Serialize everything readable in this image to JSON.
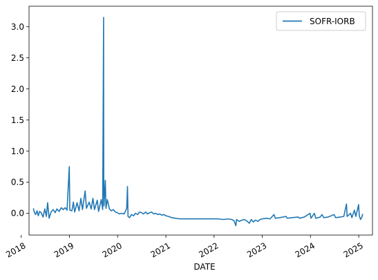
{
  "chart_data": {
    "type": "line",
    "xlabel": "DATE",
    "ylabel": "",
    "ylim": [
      -0.35,
      3.33
    ],
    "xlim": [
      "2018-03-01",
      "2025-04-15"
    ],
    "grid": false,
    "legend_position": "top-right",
    "y_ticks": [
      {
        "value": 0.0,
        "label": "0.0"
      },
      {
        "value": 0.5,
        "label": "0.5"
      },
      {
        "value": 1.0,
        "label": "1.0"
      },
      {
        "value": 1.5,
        "label": "1.5"
      },
      {
        "value": 2.0,
        "label": "2.0"
      },
      {
        "value": 2.5,
        "label": "2.5"
      },
      {
        "value": 3.0,
        "label": "3.0"
      }
    ],
    "x_ticks": [
      {
        "value": "2018-01-01",
        "label": "2018"
      },
      {
        "value": "2019-01-01",
        "label": "2019"
      },
      {
        "value": "2020-01-01",
        "label": "2020"
      },
      {
        "value": "2021-01-01",
        "label": "2021"
      },
      {
        "value": "2022-01-01",
        "label": "2022"
      },
      {
        "value": "2023-01-01",
        "label": "2023"
      },
      {
        "value": "2024-01-01",
        "label": "2024"
      },
      {
        "value": "2025-01-01",
        "label": "2025"
      }
    ],
    "series": [
      {
        "name": "SOFR-IORB",
        "color": "#1f77b4",
        "points": [
          [
            "2018-04-03",
            0.08
          ],
          [
            "2018-04-10",
            0.02
          ],
          [
            "2018-04-20",
            -0.02
          ],
          [
            "2018-05-01",
            0.04
          ],
          [
            "2018-05-10",
            -0.04
          ],
          [
            "2018-05-20",
            0.03
          ],
          [
            "2018-06-01",
            0.01
          ],
          [
            "2018-06-15",
            -0.06
          ],
          [
            "2018-06-29",
            0.07
          ],
          [
            "2018-07-10",
            -0.05
          ],
          [
            "2018-07-20",
            0.17
          ],
          [
            "2018-07-31",
            -0.08
          ],
          [
            "2018-08-15",
            0.02
          ],
          [
            "2018-08-31",
            0.06
          ],
          [
            "2018-09-15",
            0.01
          ],
          [
            "2018-09-28",
            0.07
          ],
          [
            "2018-10-15",
            0.03
          ],
          [
            "2018-10-31",
            0.09
          ],
          [
            "2018-11-15",
            0.06
          ],
          [
            "2018-11-30",
            0.09
          ],
          [
            "2018-12-14",
            0.05
          ],
          [
            "2018-12-31",
            0.75
          ],
          [
            "2019-01-04",
            0.05
          ],
          [
            "2019-01-20",
            0.04
          ],
          [
            "2019-01-31",
            0.18
          ],
          [
            "2019-02-10",
            0.02
          ],
          [
            "2019-02-28",
            0.17
          ],
          [
            "2019-03-15",
            0.04
          ],
          [
            "2019-03-29",
            0.24
          ],
          [
            "2019-04-10",
            0.06
          ],
          [
            "2019-04-30",
            0.36
          ],
          [
            "2019-05-10",
            0.08
          ],
          [
            "2019-05-31",
            0.18
          ],
          [
            "2019-06-15",
            0.07
          ],
          [
            "2019-06-28",
            0.24
          ],
          [
            "2019-07-10",
            0.06
          ],
          [
            "2019-07-31",
            0.21
          ],
          [
            "2019-08-10",
            0.03
          ],
          [
            "2019-08-30",
            0.22
          ],
          [
            "2019-09-10",
            0.06
          ],
          [
            "2019-09-17",
            3.15
          ],
          [
            "2019-09-18",
            0.55
          ],
          [
            "2019-09-20",
            0.12
          ],
          [
            "2019-09-30",
            0.53
          ],
          [
            "2019-10-05",
            0.08
          ],
          [
            "2019-10-15",
            0.22
          ],
          [
            "2019-10-31",
            0.07
          ],
          [
            "2019-11-15",
            0.04
          ],
          [
            "2019-11-29",
            0.06
          ],
          [
            "2019-12-16",
            0.02
          ],
          [
            "2019-12-31",
            0.01
          ],
          [
            "2020-01-15",
            -0.01
          ],
          [
            "2020-02-01",
            0.0
          ],
          [
            "2020-02-20",
            -0.01
          ],
          [
            "2020-03-10",
            0.08
          ],
          [
            "2020-03-16",
            0.43
          ],
          [
            "2020-03-20",
            -0.05
          ],
          [
            "2020-04-01",
            -0.07
          ],
          [
            "2020-04-15",
            -0.02
          ],
          [
            "2020-05-01",
            -0.04
          ],
          [
            "2020-05-15",
            0.0
          ],
          [
            "2020-06-01",
            -0.02
          ],
          [
            "2020-06-15",
            0.02
          ],
          [
            "2020-07-01",
            0.01
          ],
          [
            "2020-07-15",
            -0.01
          ],
          [
            "2020-08-01",
            0.02
          ],
          [
            "2020-08-15",
            -0.01
          ],
          [
            "2020-09-01",
            0.01
          ],
          [
            "2020-09-15",
            0.02
          ],
          [
            "2020-10-01",
            -0.01
          ],
          [
            "2020-10-15",
            0.0
          ],
          [
            "2020-11-01",
            -0.02
          ],
          [
            "2020-11-15",
            -0.01
          ],
          [
            "2020-12-01",
            -0.03
          ],
          [
            "2020-12-15",
            -0.02
          ],
          [
            "2021-01-01",
            -0.04
          ],
          [
            "2021-01-20",
            -0.05
          ],
          [
            "2021-02-15",
            -0.07
          ],
          [
            "2021-03-15",
            -0.08
          ],
          [
            "2021-04-15",
            -0.09
          ],
          [
            "2021-06-01",
            -0.09
          ],
          [
            "2021-08-01",
            -0.09
          ],
          [
            "2021-10-01",
            -0.09
          ],
          [
            "2021-12-01",
            -0.09
          ],
          [
            "2022-02-01",
            -0.09
          ],
          [
            "2022-03-15",
            -0.1
          ],
          [
            "2022-04-15",
            -0.09
          ],
          [
            "2022-05-15",
            -0.1
          ],
          [
            "2022-06-01",
            -0.12
          ],
          [
            "2022-06-15",
            -0.2
          ],
          [
            "2022-06-20",
            -0.1
          ],
          [
            "2022-07-10",
            -0.13
          ],
          [
            "2022-08-01",
            -0.11
          ],
          [
            "2022-08-20",
            -0.1
          ],
          [
            "2022-09-10",
            -0.13
          ],
          [
            "2022-09-25",
            -0.16
          ],
          [
            "2022-10-10",
            -0.1
          ],
          [
            "2022-10-25",
            -0.14
          ],
          [
            "2022-11-10",
            -0.11
          ],
          [
            "2022-11-30",
            -0.13
          ],
          [
            "2022-12-15",
            -0.1
          ],
          [
            "2023-01-01",
            -0.09
          ],
          [
            "2023-02-01",
            -0.08
          ],
          [
            "2023-03-01",
            -0.09
          ],
          [
            "2023-03-31",
            -0.02
          ],
          [
            "2023-04-10",
            -0.08
          ],
          [
            "2023-05-15",
            -0.07
          ],
          [
            "2023-06-30",
            -0.05
          ],
          [
            "2023-07-10",
            -0.08
          ],
          [
            "2023-08-15",
            -0.07
          ],
          [
            "2023-09-30",
            -0.06
          ],
          [
            "2023-10-10",
            -0.08
          ],
          [
            "2023-11-15",
            -0.06
          ],
          [
            "2023-12-29",
            0.0
          ],
          [
            "2024-01-05",
            -0.08
          ],
          [
            "2024-01-31",
            0.0
          ],
          [
            "2024-02-10",
            -0.08
          ],
          [
            "2024-03-15",
            -0.06
          ],
          [
            "2024-03-29",
            -0.02
          ],
          [
            "2024-04-10",
            -0.07
          ],
          [
            "2024-05-15",
            -0.06
          ],
          [
            "2024-06-28",
            -0.02
          ],
          [
            "2024-07-10",
            -0.07
          ],
          [
            "2024-08-15",
            -0.06
          ],
          [
            "2024-09-10",
            -0.05
          ],
          [
            "2024-09-30",
            0.15
          ],
          [
            "2024-10-05",
            -0.05
          ],
          [
            "2024-10-31",
            0.0
          ],
          [
            "2024-11-10",
            -0.07
          ],
          [
            "2024-11-29",
            0.05
          ],
          [
            "2024-12-10",
            -0.05
          ],
          [
            "2024-12-31",
            0.14
          ],
          [
            "2025-01-05",
            -0.04
          ],
          [
            "2025-01-15",
            -0.1
          ],
          [
            "2025-01-25",
            -0.06
          ],
          [
            "2025-01-31",
            -0.01
          ]
        ]
      }
    ]
  }
}
